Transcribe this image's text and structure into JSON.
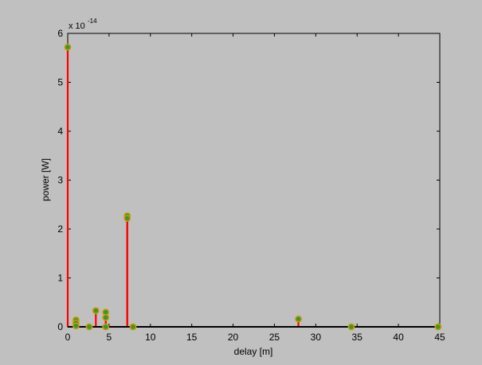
{
  "chart_data": {
    "type": "stem",
    "xlabel": "delay [m]",
    "ylabel": "power [W]",
    "y_exponent_label": "x 10",
    "y_exponent_power": "-14",
    "xlim": [
      0,
      45
    ],
    "ylim": [
      0,
      6
    ],
    "xticks": [
      0,
      5,
      10,
      15,
      20,
      25,
      30,
      35,
      40,
      45
    ],
    "yticks": [
      0,
      1,
      2,
      3,
      4,
      5,
      6
    ],
    "grid": false,
    "colors": {
      "stem": "#ff0000",
      "marker_edge": "#cc9900",
      "marker_face": "#339933",
      "axes_background": "#c0c0c0",
      "figure_background": "#c0c0c0",
      "baseline": "#000000"
    },
    "points": [
      {
        "x": 0.0,
        "y": 5.72
      },
      {
        "x": 1.0,
        "y": 0.14
      },
      {
        "x": 1.0,
        "y": 0.08
      },
      {
        "x": 1.0,
        "y": 0.02
      },
      {
        "x": 2.6,
        "y": 0.0
      },
      {
        "x": 3.4,
        "y": 0.33
      },
      {
        "x": 4.6,
        "y": 0.3
      },
      {
        "x": 4.6,
        "y": 0.19
      },
      {
        "x": 4.6,
        "y": 0.0
      },
      {
        "x": 7.2,
        "y": 2.27
      },
      {
        "x": 7.2,
        "y": 2.22
      },
      {
        "x": 7.9,
        "y": 0.0
      },
      {
        "x": 27.9,
        "y": 0.16
      },
      {
        "x": 34.3,
        "y": 0.0
      },
      {
        "x": 44.8,
        "y": 0.0
      }
    ]
  }
}
